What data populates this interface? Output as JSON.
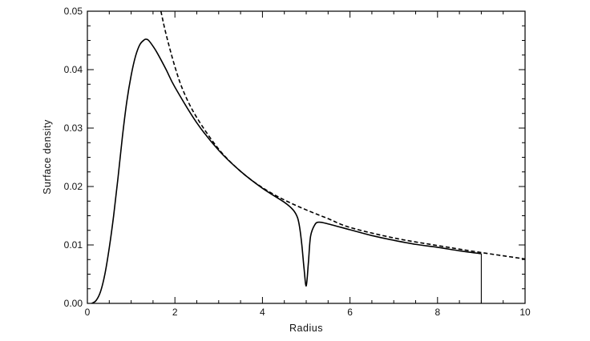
{
  "chart_data": {
    "type": "line",
    "title": "",
    "xlabel": "Radius",
    "ylabel": "Surface density",
    "xlim": [
      0,
      10
    ],
    "ylim": [
      0,
      0.05
    ],
    "x_ticks": [
      0,
      2,
      4,
      6,
      8,
      10
    ],
    "x_tick_labels": [
      "0",
      "2",
      "4",
      "6",
      "8",
      "10"
    ],
    "y_ticks": [
      0,
      0.01,
      0.02,
      0.03,
      0.04,
      0.05
    ],
    "y_tick_labels": [
      "0.00",
      "0.01",
      "0.02",
      "0.03",
      "0.04",
      "0.05"
    ],
    "grid": false,
    "legend": "none",
    "series": [
      {
        "style": "solid",
        "color": "#000000",
        "x": [
          0.1,
          0.2,
          0.3,
          0.4,
          0.5,
          0.6,
          0.7,
          0.8,
          0.9,
          1.0,
          1.1,
          1.2,
          1.3,
          1.35,
          1.4,
          1.5,
          1.6,
          1.8,
          2.0,
          2.5,
          3.0,
          3.5,
          4.0,
          4.5,
          4.7,
          4.8,
          4.85,
          4.9,
          4.95,
          5.0,
          5.05,
          5.1,
          5.2,
          5.3,
          5.5,
          6.0,
          6.5,
          7.0,
          7.5,
          8.0,
          8.5,
          9.0
        ],
        "y": [
          0.0,
          0.0005,
          0.002,
          0.005,
          0.0095,
          0.015,
          0.0215,
          0.0285,
          0.0345,
          0.039,
          0.0423,
          0.0443,
          0.0451,
          0.0452,
          0.045,
          0.044,
          0.0428,
          0.04,
          0.037,
          0.0309,
          0.0262,
          0.0226,
          0.0197,
          0.0173,
          0.016,
          0.0147,
          0.013,
          0.01,
          0.006,
          0.003,
          0.007,
          0.0115,
          0.0135,
          0.0139,
          0.0136,
          0.0126,
          0.0116,
          0.0108,
          0.0101,
          0.0096,
          0.009,
          0.0085
        ]
      },
      {
        "style": "dashed",
        "color": "#000000",
        "x": [
          1.68,
          1.8,
          2.0,
          2.2,
          2.5,
          3.0,
          3.5,
          4.0,
          4.5,
          5.0,
          5.5,
          6.0,
          7.0,
          8.0,
          9.0,
          10.0
        ],
        "y": [
          0.05,
          0.046,
          0.0405,
          0.0362,
          0.0318,
          0.0264,
          0.0226,
          0.0198,
          0.0177,
          0.016,
          0.0145,
          0.013,
          0.0112,
          0.0099,
          0.0087,
          0.0076
        ]
      }
    ],
    "annotations": [
      {
        "type": "vertical-line",
        "x": 9.0,
        "y_from": 0.0,
        "y_to": 0.0085
      }
    ]
  }
}
